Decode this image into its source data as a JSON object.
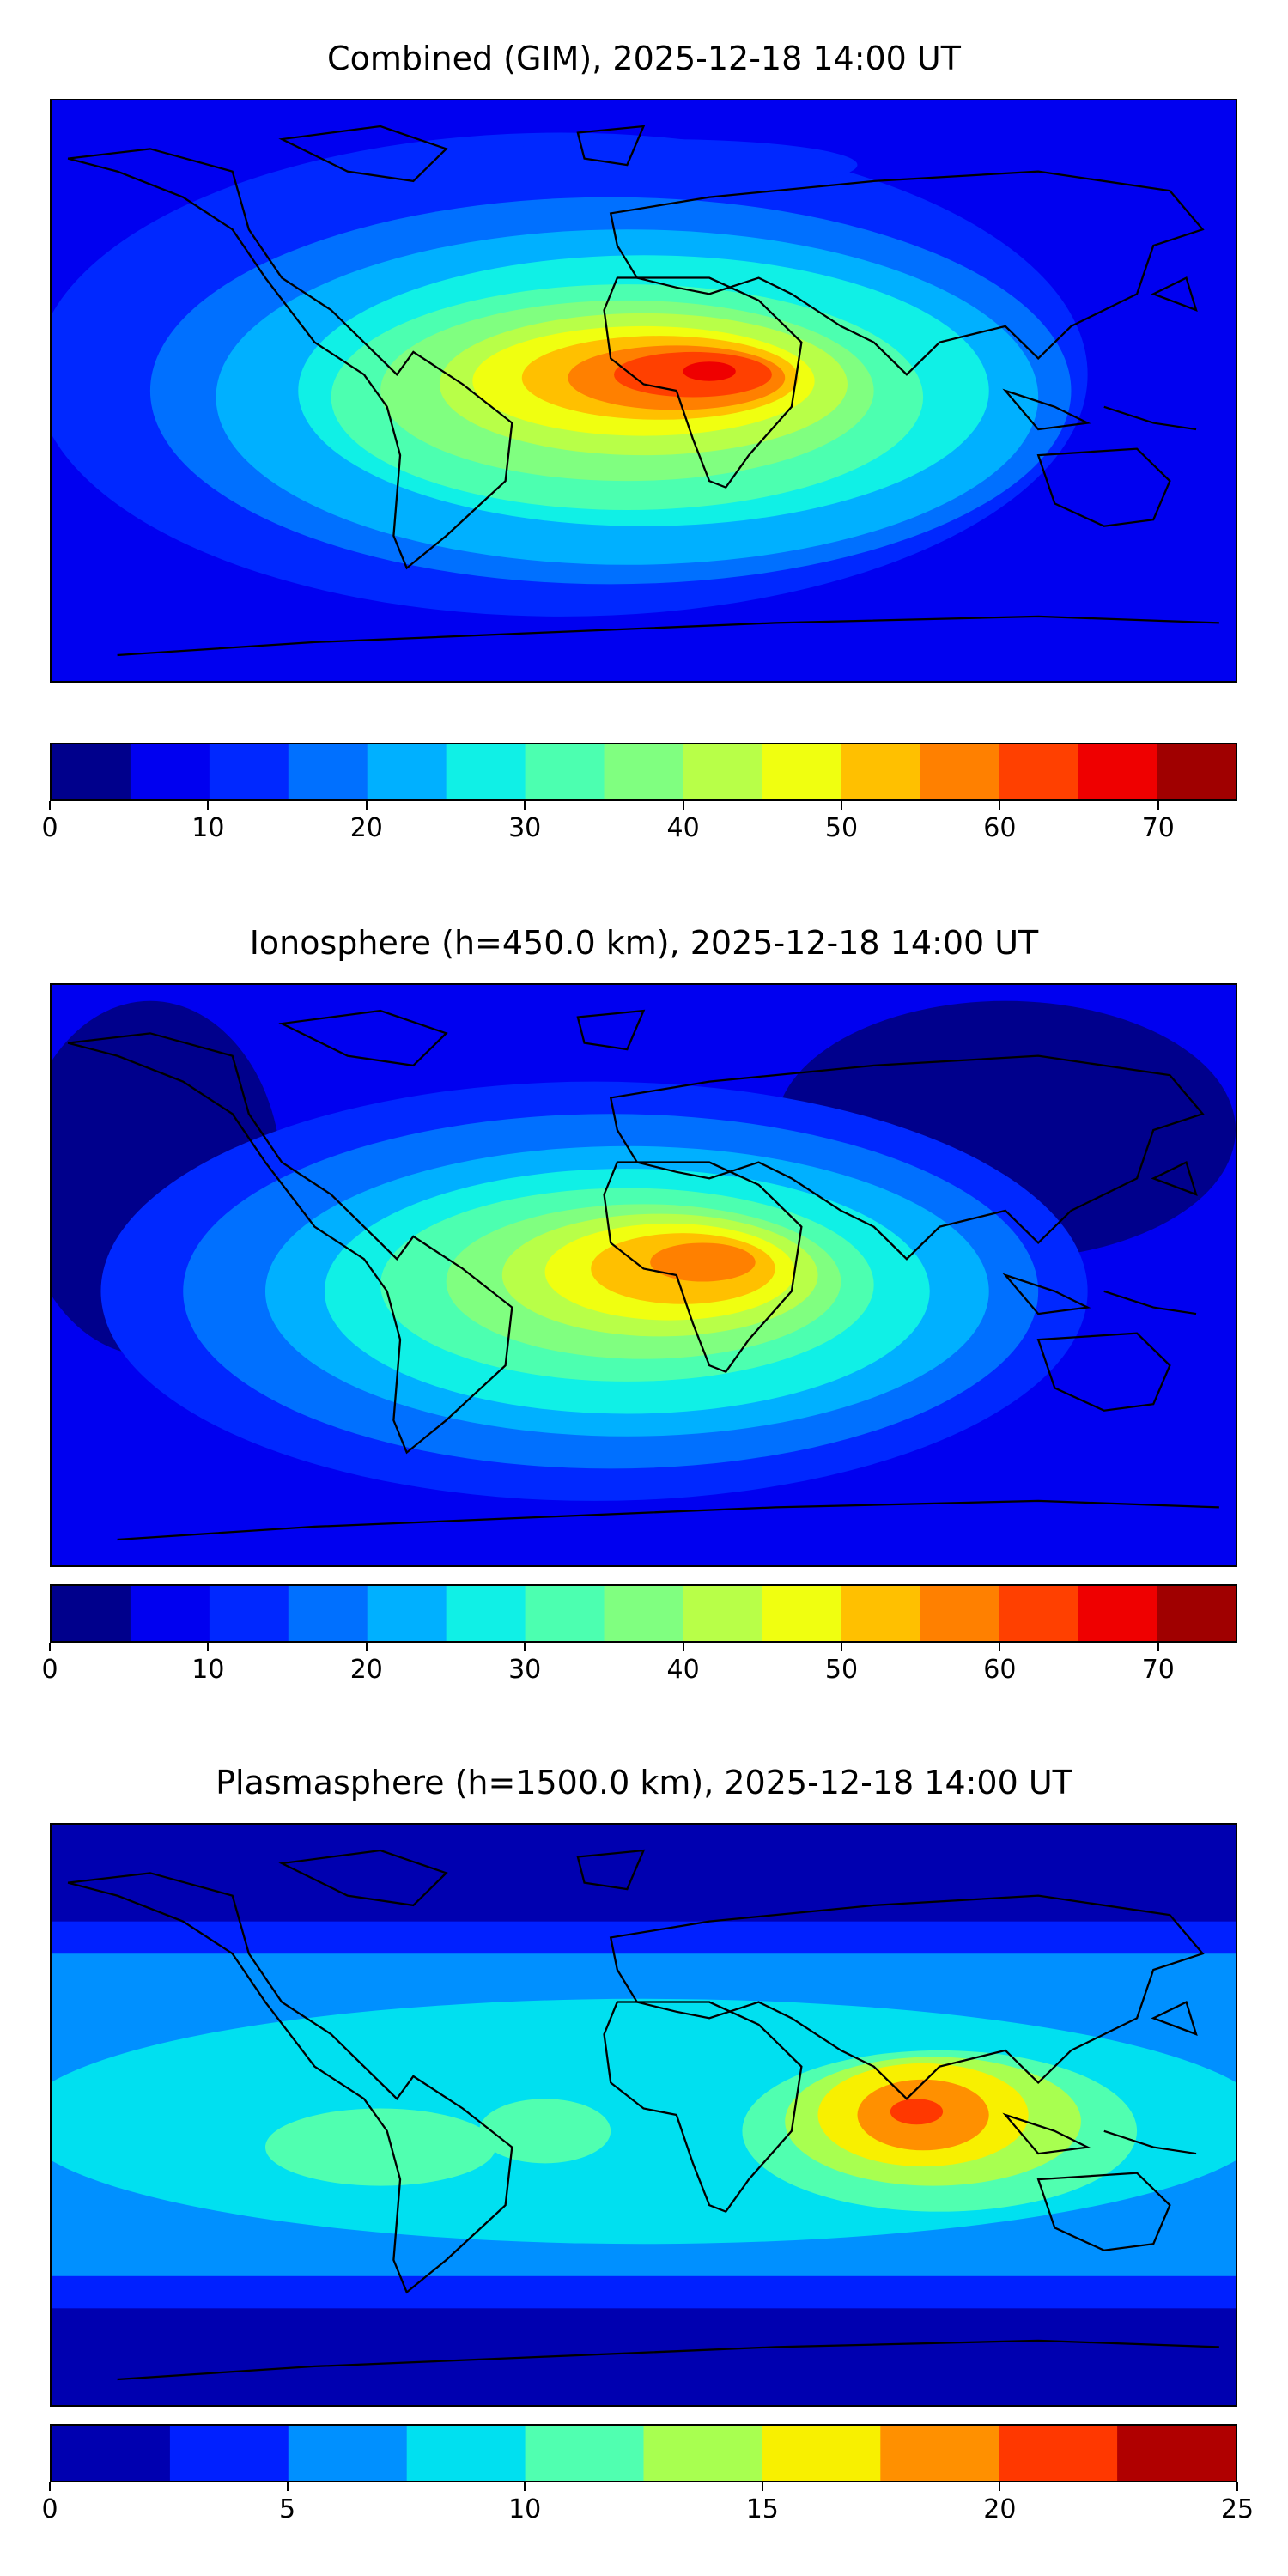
{
  "panels": [
    {
      "title": "Combined (GIM), 2025-12-18 14:00 UT",
      "colorbar": {
        "min": 0,
        "max": 75,
        "step": 5,
        "ticks": [
          "0",
          "10",
          "20",
          "30",
          "40",
          "50",
          "60",
          "70"
        ],
        "tick_values": [
          0,
          10,
          20,
          30,
          40,
          50,
          60,
          70
        ],
        "colors": [
          "#00008c",
          "#0000f0",
          "#0028ff",
          "#0070ff",
          "#00b0ff",
          "#10f0e6",
          "#4cffb0",
          "#80ff80",
          "#b8ff48",
          "#f0ff10",
          "#ffc000",
          "#ff8000",
          "#ff4000",
          "#ef0000",
          "#a00000"
        ]
      }
    },
    {
      "title": "Ionosphere  (h=450.0 km), 2025-12-18 14:00 UT",
      "colorbar": {
        "min": 0,
        "max": 75,
        "step": 5,
        "ticks": [
          "0",
          "10",
          "20",
          "30",
          "40",
          "50",
          "60",
          "70"
        ],
        "tick_values": [
          0,
          10,
          20,
          30,
          40,
          50,
          60,
          70
        ],
        "colors": [
          "#00008c",
          "#0000f0",
          "#0028ff",
          "#0070ff",
          "#00b0ff",
          "#10f0e6",
          "#4cffb0",
          "#80ff80",
          "#b8ff48",
          "#f0ff10",
          "#ffc000",
          "#ff8000",
          "#ff4000",
          "#ef0000",
          "#a00000"
        ]
      }
    },
    {
      "title": "Plasmasphere (h=1500.0 km), 2025-12-18 14:00 UT",
      "colorbar": {
        "min": 0,
        "max": 25,
        "step": 2.5,
        "ticks": [
          "0",
          "5",
          "10",
          "15",
          "20",
          "25"
        ],
        "tick_values": [
          0,
          5,
          10,
          15,
          20,
          25
        ],
        "colors": [
          "#0000b0",
          "#0020ff",
          "#0090ff",
          "#00e0f0",
          "#50ffb0",
          "#a8ff50",
          "#f8f000",
          "#ff9000",
          "#ff3800",
          "#b00000"
        ]
      }
    }
  ]
}
